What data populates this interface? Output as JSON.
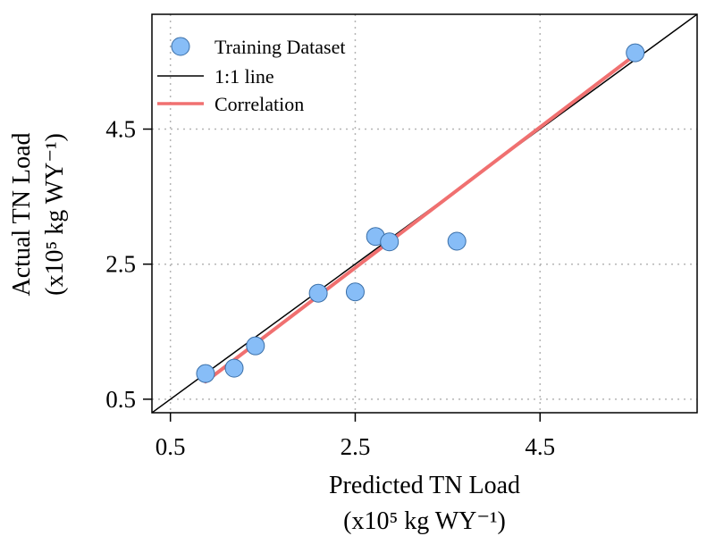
{
  "chart_data": {
    "type": "scatter",
    "xlabel_line1": "Predicted TN Load",
    "xlabel_line2": "(x10⁵ kg WY⁻¹)",
    "ylabel_line1": "Actual TN Load",
    "ylabel_line2": "(x10⁵ kg WY⁻¹)",
    "xlim": [
      0.3,
      6.2
    ],
    "ylim": [
      0.3,
      6.2
    ],
    "x_ticks": [
      0.5,
      2.5,
      4.5
    ],
    "x_tick_labels": [
      "0.5",
      "2.5",
      "4.5"
    ],
    "y_ticks": [
      0.5,
      2.5,
      4.5
    ],
    "y_tick_labels": [
      "0.5",
      "2.5",
      "4.5"
    ],
    "grid": true,
    "legend_position": "top-left",
    "series": [
      {
        "name": "Training Dataset",
        "kind": "points",
        "color": "#87bdf7",
        "x": [
          0.88,
          1.19,
          1.42,
          2.1,
          2.5,
          2.72,
          2.87,
          3.6,
          5.53
        ],
        "y": [
          0.88,
          0.96,
          1.29,
          2.07,
          2.09,
          2.91,
          2.83,
          2.84,
          5.63
        ]
      },
      {
        "name": "1:1 line",
        "kind": "line",
        "color": "#000000",
        "x": [
          0.3,
          6.2
        ],
        "y": [
          0.3,
          6.2
        ]
      },
      {
        "name": "Correlation",
        "kind": "line",
        "color": "#f07070",
        "x": [
          0.88,
          5.53
        ],
        "y": [
          0.76,
          5.6
        ]
      }
    ]
  }
}
